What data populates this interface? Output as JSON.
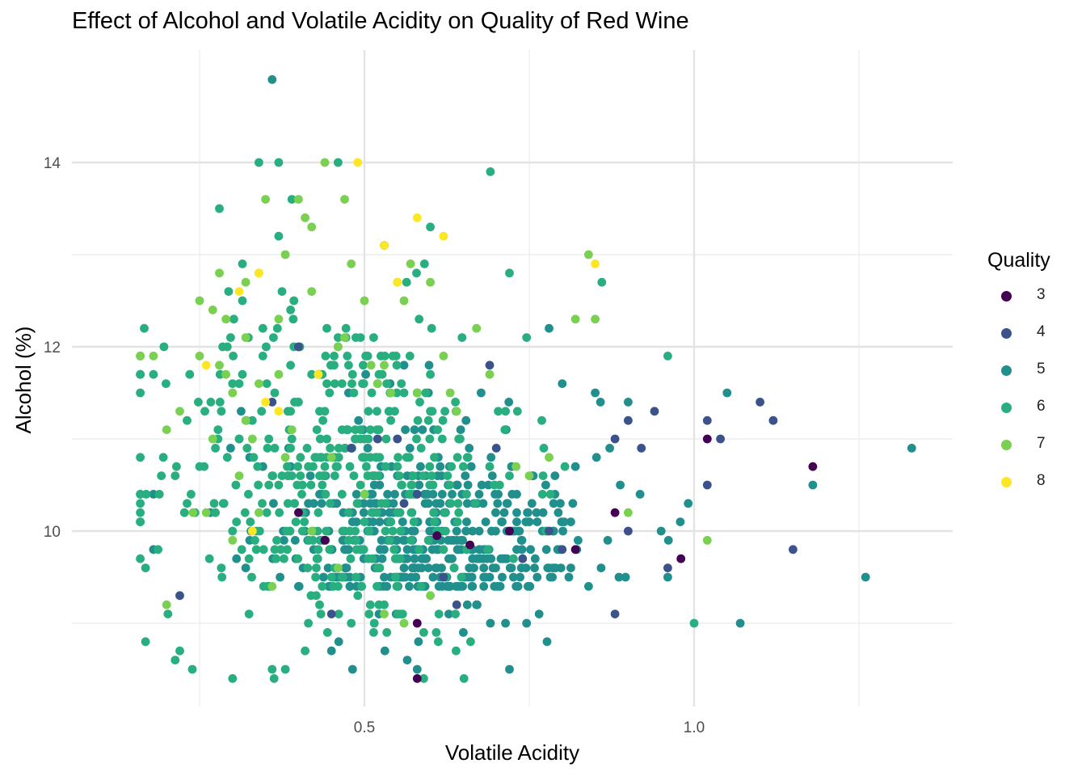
{
  "chart_data": {
    "type": "scatter",
    "title": "Effect of Alcohol and Volatile Acidity on Quality of Red Wine",
    "xlabel": "Volatile Acidity",
    "ylabel": "Alcohol (%)",
    "xlim": [
      0.12,
      1.4
    ],
    "ylim": [
      8.2,
      15.0
    ],
    "x_ticks": [
      0.5,
      1.0
    ],
    "x_tick_labels": [
      "0.5",
      "1.0"
    ],
    "x_minor_ticks": [
      0.25,
      0.75,
      1.25
    ],
    "y_ticks": [
      10,
      12,
      14
    ],
    "y_tick_labels": [
      "10",
      "12",
      "14"
    ],
    "y_minor_ticks": [
      9,
      11,
      13
    ],
    "grid": true,
    "legend": {
      "title": "Quality",
      "position": "right"
    },
    "series": [
      {
        "name": "3",
        "color": "#440154",
        "points": [
          [
            0.58,
            8.4
          ],
          [
            0.61,
            9.95
          ],
          [
            0.44,
            9.9
          ],
          [
            0.88,
            10.2
          ],
          [
            0.98,
            9.7
          ],
          [
            1.02,
            11.0
          ],
          [
            1.18,
            10.7
          ],
          [
            0.82,
            9.8
          ],
          [
            0.66,
            9.85
          ],
          [
            0.72,
            10.0
          ],
          [
            0.58,
            9.0
          ],
          [
            0.4,
            10.2
          ]
        ]
      },
      {
        "name": "4",
        "color": "#3b528b",
        "points": [
          [
            0.53,
            13.1
          ],
          [
            0.22,
            9.3
          ],
          [
            0.36,
            11.4
          ],
          [
            0.4,
            12.0
          ],
          [
            0.69,
            11.8
          ],
          [
            0.8,
            9.8
          ],
          [
            0.9,
            11.2
          ],
          [
            0.88,
            11.0
          ],
          [
            0.92,
            10.9
          ],
          [
            0.94,
            11.3
          ],
          [
            1.02,
            10.5
          ],
          [
            1.02,
            11.2
          ],
          [
            1.04,
            11.0
          ],
          [
            1.1,
            11.4
          ],
          [
            1.12,
            11.2
          ],
          [
            1.15,
            9.8
          ],
          [
            0.96,
            9.6
          ],
          [
            0.88,
            9.1
          ],
          [
            0.64,
            9.2
          ],
          [
            0.58,
            10.4
          ],
          [
            0.74,
            9.7
          ],
          [
            0.55,
            11.0
          ],
          [
            0.48,
            10.9
          ],
          [
            0.7,
            10.9
          ],
          [
            0.78,
            10.0
          ],
          [
            0.9,
            10.0
          ],
          [
            0.62,
            9.5
          ],
          [
            0.45,
            9.1
          ],
          [
            0.56,
            10.3
          ],
          [
            0.52,
            11.0
          ]
        ]
      },
      {
        "name": "5",
        "color": "#21908d",
        "points": []
      },
      {
        "name": "6",
        "color": "#29af7f",
        "points": []
      },
      {
        "name": "7",
        "color": "#7ad151",
        "points": [
          [
            0.16,
            11.9
          ],
          [
            0.18,
            11.9
          ],
          [
            0.2,
            11.1
          ],
          [
            0.2,
            9.2
          ],
          [
            0.22,
            11.3
          ],
          [
            0.24,
            10.2
          ],
          [
            0.25,
            12.5
          ],
          [
            0.25,
            11.9
          ],
          [
            0.26,
            10.2
          ],
          [
            0.27,
            12.4
          ],
          [
            0.28,
            11.8
          ],
          [
            0.28,
            12.8
          ],
          [
            0.29,
            11.7
          ],
          [
            0.29,
            12.3
          ],
          [
            0.3,
            11.5
          ],
          [
            0.31,
            10.6
          ],
          [
            0.32,
            12.7
          ],
          [
            0.32,
            12.1
          ],
          [
            0.32,
            11.2
          ],
          [
            0.34,
            11.6
          ],
          [
            0.34,
            12.8
          ],
          [
            0.35,
            13.6
          ],
          [
            0.37,
            11.7
          ],
          [
            0.37,
            12.3
          ],
          [
            0.38,
            13.0
          ],
          [
            0.39,
            11.1
          ],
          [
            0.4,
            13.6
          ],
          [
            0.41,
            13.4
          ],
          [
            0.42,
            13.3
          ],
          [
            0.42,
            12.6
          ],
          [
            0.43,
            11.7
          ],
          [
            0.44,
            14.0
          ],
          [
            0.46,
            12.0
          ],
          [
            0.47,
            13.6
          ],
          [
            0.47,
            12.1
          ],
          [
            0.48,
            12.9
          ],
          [
            0.5,
            12.5
          ],
          [
            0.51,
            11.8
          ],
          [
            0.52,
            11.6
          ],
          [
            0.53,
            11.8
          ],
          [
            0.54,
            11.5
          ],
          [
            0.55,
            12.7
          ],
          [
            0.56,
            12.5
          ],
          [
            0.57,
            12.9
          ],
          [
            0.58,
            11.5
          ],
          [
            0.6,
            12.7
          ],
          [
            0.62,
            11.9
          ],
          [
            0.63,
            11.5
          ],
          [
            0.64,
            11.3
          ],
          [
            0.67,
            12.2
          ],
          [
            0.69,
            11.7
          ],
          [
            0.73,
            10.7
          ],
          [
            0.75,
            10.6
          ],
          [
            0.78,
            10.8
          ],
          [
            0.82,
            12.3
          ],
          [
            0.85,
            12.3
          ],
          [
            0.84,
            13.0
          ],
          [
            0.9,
            10.2
          ],
          [
            1.02,
            9.9
          ],
          [
            0.36,
            9.4
          ],
          [
            0.3,
            9.9
          ],
          [
            0.42,
            10.0
          ],
          [
            0.45,
            10.8
          ],
          [
            0.5,
            10.4
          ],
          [
            0.38,
            10.8
          ],
          [
            0.34,
            10.2
          ],
          [
            0.46,
            9.6
          ],
          [
            0.53,
            9.1
          ],
          [
            0.6,
            9.3
          ],
          [
            0.56,
            9.0
          ],
          [
            0.27,
            11.0
          ],
          [
            0.33,
            11.0
          ]
        ]
      },
      {
        "name": "8",
        "color": "#fde725",
        "points": [
          [
            0.49,
            14.0
          ],
          [
            0.58,
            13.4
          ],
          [
            0.53,
            13.1
          ],
          [
            0.55,
            12.7
          ],
          [
            0.34,
            12.8
          ],
          [
            0.31,
            12.6
          ],
          [
            0.35,
            11.4
          ],
          [
            0.37,
            11.3
          ],
          [
            0.26,
            11.8
          ],
          [
            0.43,
            11.7
          ],
          [
            0.33,
            10.0
          ],
          [
            0.85,
            12.9
          ],
          [
            0.62,
            13.2
          ]
        ]
      }
    ]
  }
}
